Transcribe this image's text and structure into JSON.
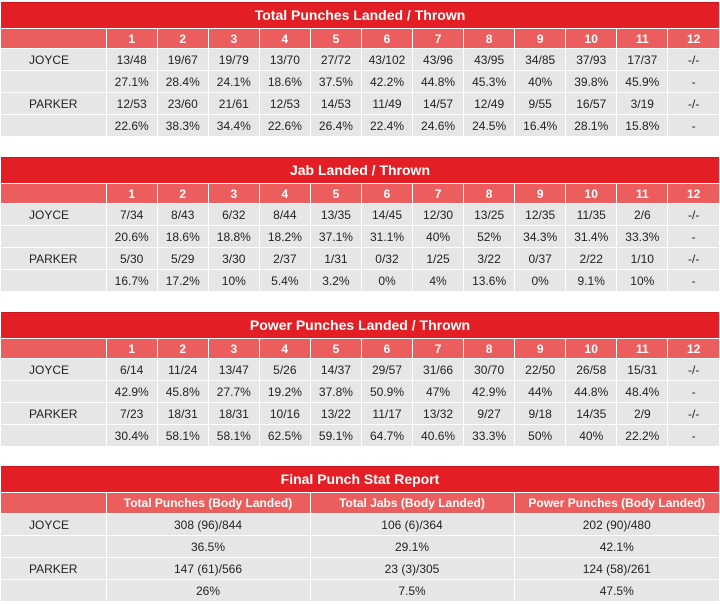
{
  "rounds": [
    "1",
    "2",
    "3",
    "4",
    "5",
    "6",
    "7",
    "8",
    "9",
    "10",
    "11",
    "12"
  ],
  "tables": [
    {
      "title": "Total Punches Landed / Thrown",
      "rows": [
        {
          "name": "JOYCE",
          "cells": [
            "13/48",
            "19/67",
            "19/79",
            "13/70",
            "27/72",
            "43/102",
            "43/96",
            "43/95",
            "34/85",
            "37/93",
            "17/37",
            "-/-"
          ]
        },
        {
          "name": "",
          "cells": [
            "27.1%",
            "28.4%",
            "24.1%",
            "18.6%",
            "37.5%",
            "42.2%",
            "44.8%",
            "45.3%",
            "40%",
            "39.8%",
            "45.9%",
            "-"
          ]
        },
        {
          "name": "PARKER",
          "cells": [
            "12/53",
            "23/60",
            "21/61",
            "12/53",
            "14/53",
            "11/49",
            "14/57",
            "12/49",
            "9/55",
            "16/57",
            "3/19",
            "-/-"
          ]
        },
        {
          "name": "",
          "cells": [
            "22.6%",
            "38.3%",
            "34.4%",
            "22.6%",
            "26.4%",
            "22.4%",
            "24.6%",
            "24.5%",
            "16.4%",
            "28.1%",
            "15.8%",
            "-"
          ]
        }
      ]
    },
    {
      "title": "Jab Landed / Thrown",
      "rows": [
        {
          "name": "JOYCE",
          "cells": [
            "7/34",
            "8/43",
            "6/32",
            "8/44",
            "13/35",
            "14/45",
            "12/30",
            "13/25",
            "12/35",
            "11/35",
            "2/6",
            "-/-"
          ]
        },
        {
          "name": "",
          "cells": [
            "20.6%",
            "18.6%",
            "18.8%",
            "18.2%",
            "37.1%",
            "31.1%",
            "40%",
            "52%",
            "34.3%",
            "31.4%",
            "33.3%",
            "-"
          ]
        },
        {
          "name": "PARKER",
          "cells": [
            "5/30",
            "5/29",
            "3/30",
            "2/37",
            "1/31",
            "0/32",
            "1/25",
            "3/22",
            "0/37",
            "2/22",
            "1/10",
            "-/-"
          ]
        },
        {
          "name": "",
          "cells": [
            "16.7%",
            "17.2%",
            "10%",
            "5.4%",
            "3.2%",
            "0%",
            "4%",
            "13.6%",
            "0%",
            "9.1%",
            "10%",
            "-"
          ]
        }
      ]
    },
    {
      "title": "Power Punches Landed / Thrown",
      "rows": [
        {
          "name": "JOYCE",
          "cells": [
            "6/14",
            "11/24",
            "13/47",
            "5/26",
            "14/37",
            "29/57",
            "31/66",
            "30/70",
            "22/50",
            "26/58",
            "15/31",
            "-/-"
          ]
        },
        {
          "name": "",
          "cells": [
            "42.9%",
            "45.8%",
            "27.7%",
            "19.2%",
            "37.8%",
            "50.9%",
            "47%",
            "42.9%",
            "44%",
            "44.8%",
            "48.4%",
            "-"
          ]
        },
        {
          "name": "PARKER",
          "cells": [
            "7/23",
            "18/31",
            "18/31",
            "10/16",
            "13/22",
            "11/17",
            "13/32",
            "9/27",
            "9/18",
            "14/35",
            "2/9",
            "-/-"
          ]
        },
        {
          "name": "",
          "cells": [
            "30.4%",
            "58.1%",
            "58.1%",
            "62.5%",
            "59.1%",
            "64.7%",
            "40.6%",
            "33.3%",
            "50%",
            "40%",
            "22.2%",
            "-"
          ]
        }
      ]
    }
  ],
  "final": {
    "title": "Final Punch Stat Report",
    "headers": [
      "Total Punches (Body Landed)",
      "Total Jabs (Body Landed)",
      "Power Punches (Body Landed)"
    ],
    "rows": [
      {
        "name": "JOYCE",
        "cells": [
          "308 (96)/844",
          "106 (6)/364",
          "202 (90)/480"
        ]
      },
      {
        "name": "",
        "cells": [
          "36.5%",
          "29.1%",
          "42.1%"
        ]
      },
      {
        "name": "PARKER",
        "cells": [
          "147 (61)/566",
          "23 (3)/305",
          "124 (58)/261"
        ]
      },
      {
        "name": "",
        "cells": [
          "26%",
          "7.5%",
          "47.5%"
        ]
      }
    ]
  },
  "colors": {
    "title_bg": "#e31e24",
    "header_bg": "#ec5d5d",
    "cell_bg": "#e6e6e6"
  }
}
